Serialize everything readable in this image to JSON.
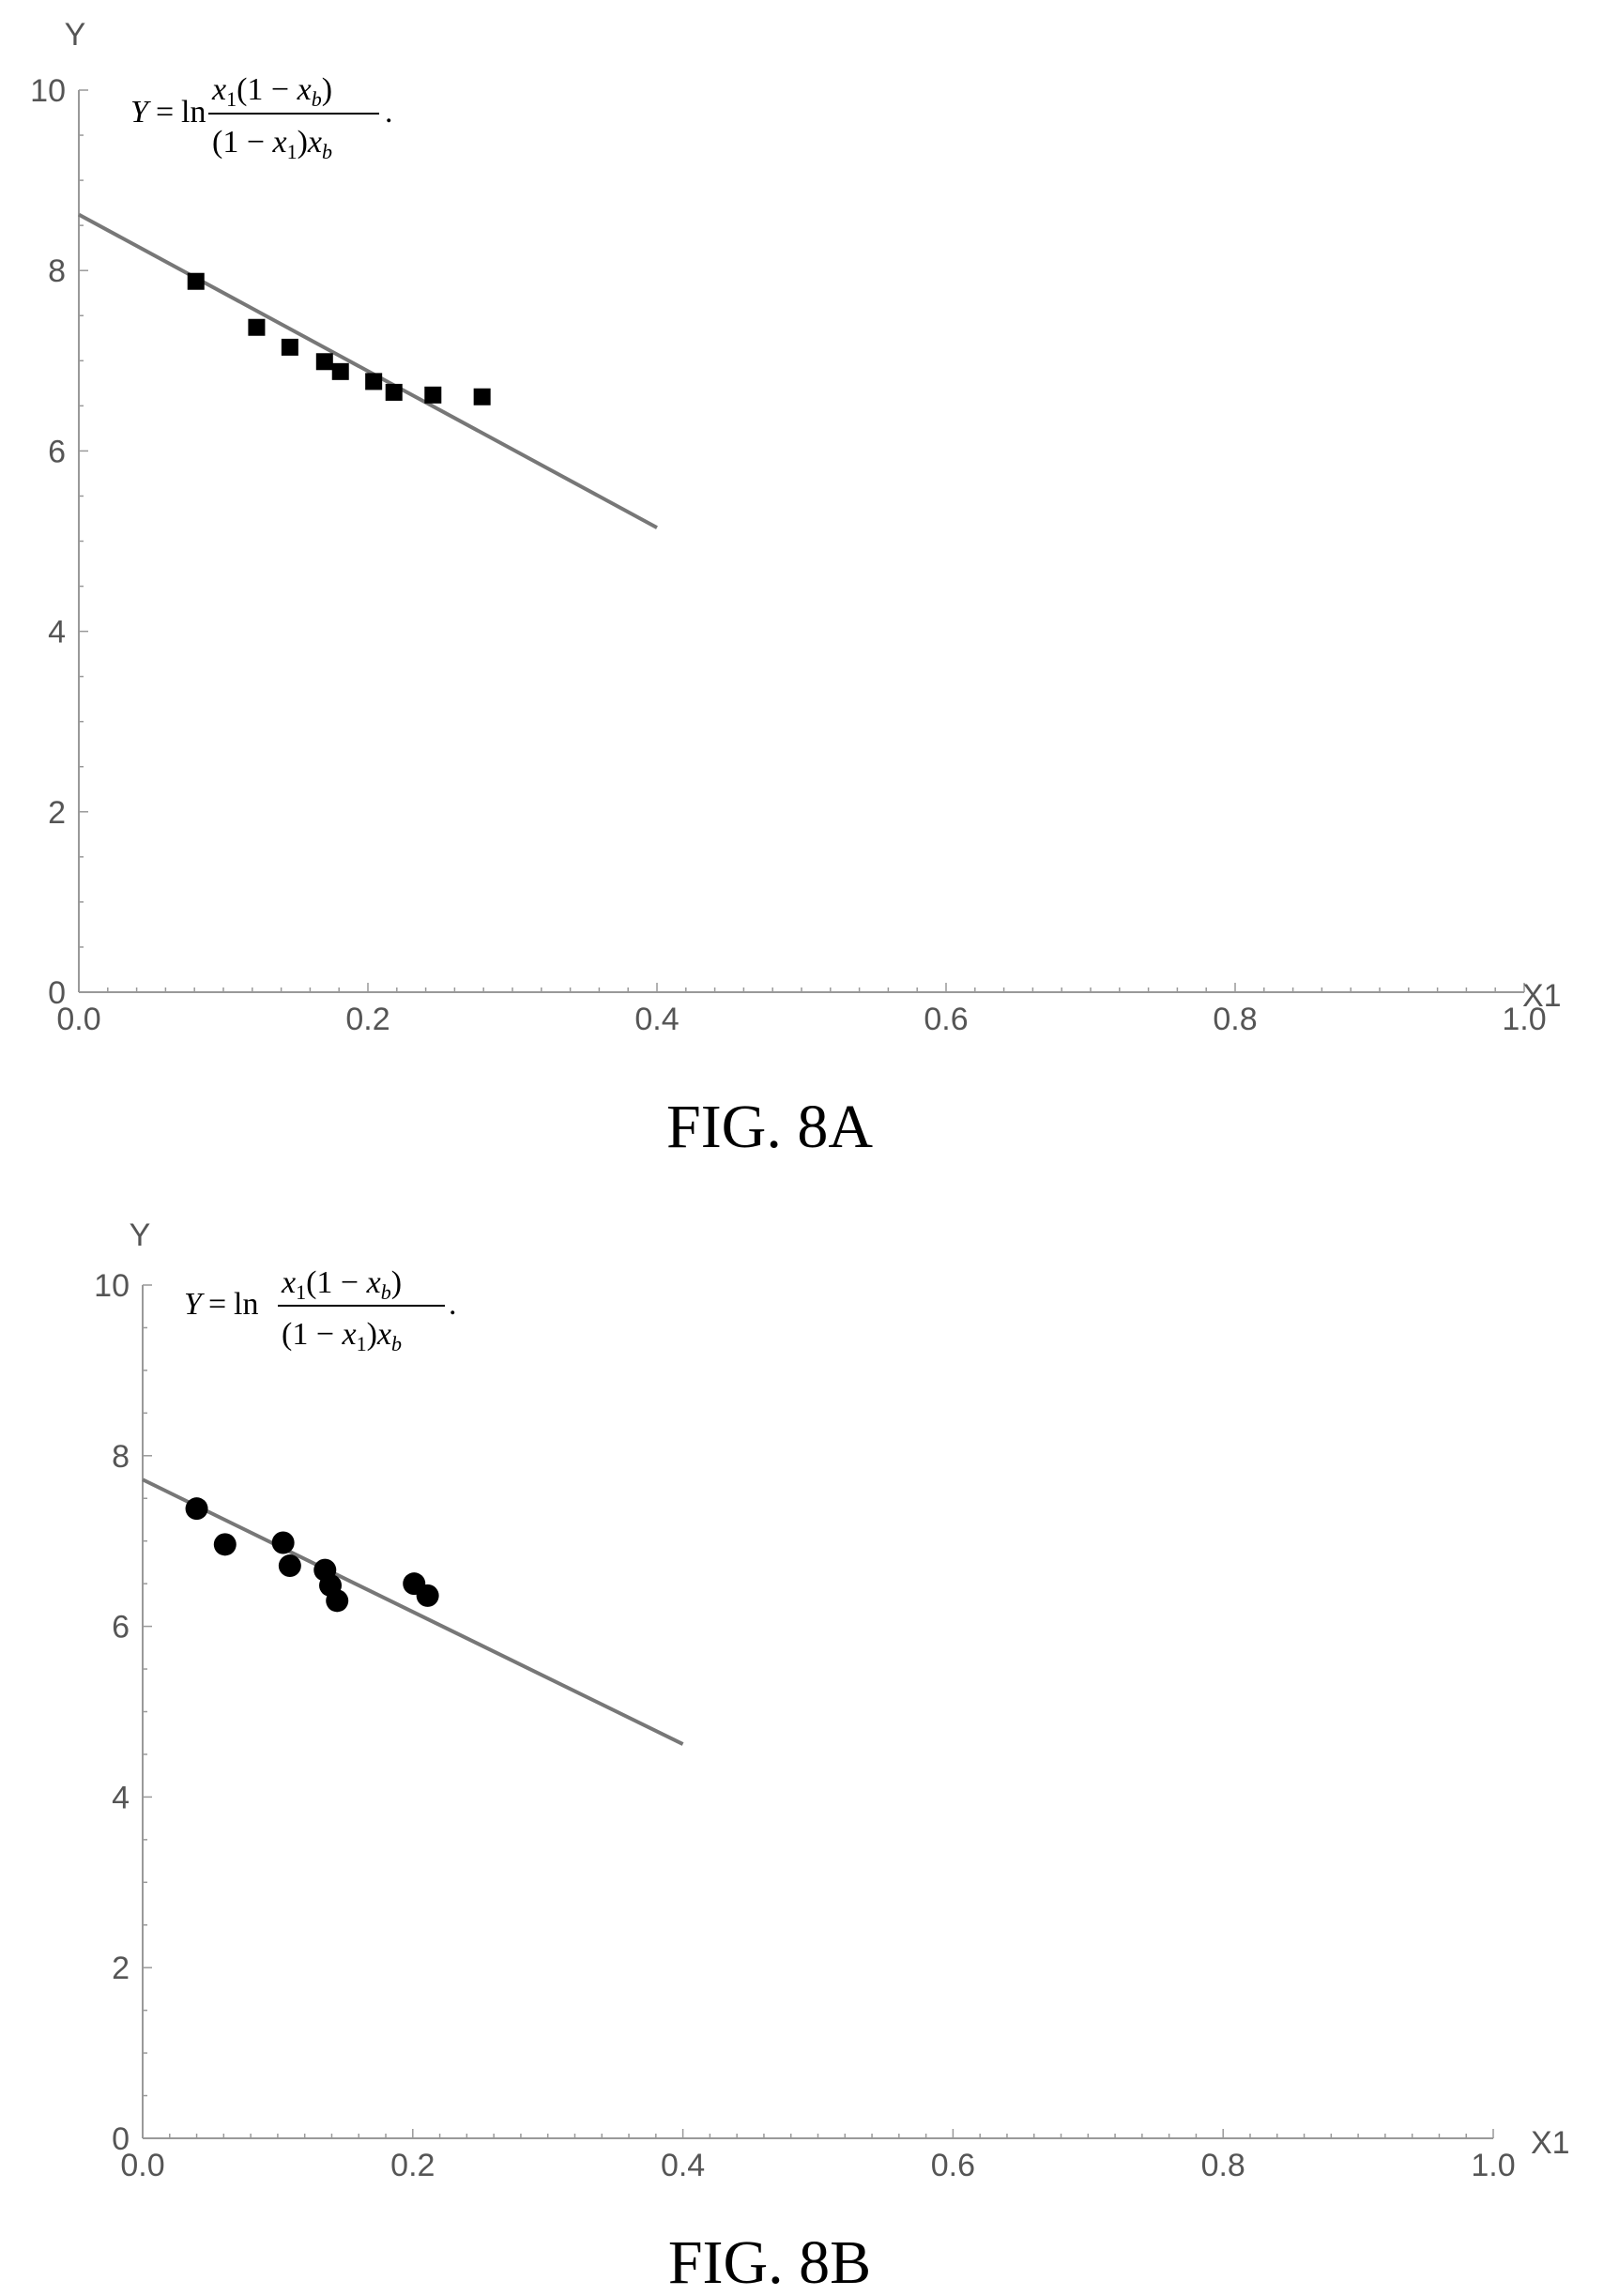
{
  "chart_data": [
    {
      "type": "scatter",
      "caption": "FIG. 8A",
      "xlabel": "X1",
      "ylabel": "Y",
      "xlim": [
        0,
        1
      ],
      "ylim": [
        0,
        10
      ],
      "x_ticks": [
        "0.0",
        "0.2",
        "0.4",
        "0.6",
        "0.8",
        "1.0"
      ],
      "y_ticks": [
        "0",
        "2",
        "4",
        "6",
        "8",
        "10"
      ],
      "annotation": {
        "lhs": "Y",
        "eq": "=",
        "ln": "ln",
        "num_x": "x",
        "num_x_sub": "1",
        "num_paren": "(1 − ",
        "num_xb": "x",
        "num_xb_sub": "b",
        "num_close": ")",
        "den_open": "(1 − ",
        "den_x": "x",
        "den_x_sub": "1",
        "den_close": ")",
        "den_xb": "x",
        "den_xb_sub": "b",
        "period": "."
      },
      "marker": "square",
      "points": [
        {
          "x": 0.081,
          "y": 7.88
        },
        {
          "x": 0.123,
          "y": 7.37
        },
        {
          "x": 0.146,
          "y": 7.15
        },
        {
          "x": 0.17,
          "y": 6.99
        },
        {
          "x": 0.181,
          "y": 6.88
        },
        {
          "x": 0.204,
          "y": 6.77
        },
        {
          "x": 0.218,
          "y": 6.65
        },
        {
          "x": 0.245,
          "y": 6.62
        },
        {
          "x": 0.279,
          "y": 6.6
        }
      ],
      "fit_line": {
        "x": [
          0.0,
          0.4
        ],
        "y": [
          8.62,
          5.15
        ]
      },
      "colors": {
        "points": "#000000",
        "line": "#777777",
        "axis": "#999999"
      }
    },
    {
      "type": "scatter",
      "caption": "FIG. 8B",
      "xlabel": "X1",
      "ylabel": "Y",
      "xlim": [
        0,
        1
      ],
      "ylim": [
        0,
        10
      ],
      "x_ticks": [
        "0.0",
        "0.2",
        "0.4",
        "0.6",
        "0.8",
        "1.0"
      ],
      "y_ticks": [
        "0",
        "2",
        "4",
        "6",
        "8",
        "10"
      ],
      "annotation": {
        "lhs": "Y",
        "eq": "=",
        "ln": "ln",
        "num_x": "x",
        "num_x_sub": "1",
        "num_paren": "(1 − ",
        "num_xb": "x",
        "num_xb_sub": "b",
        "num_close": ")",
        "den_open": "(1 − ",
        "den_x": "x",
        "den_x_sub": "1",
        "den_close": ")",
        "den_xb": "x",
        "den_xb_sub": "b",
        "period": "."
      },
      "marker": "circle",
      "points": [
        {
          "x": 0.04,
          "y": 7.38
        },
        {
          "x": 0.061,
          "y": 6.96
        },
        {
          "x": 0.104,
          "y": 6.98
        },
        {
          "x": 0.109,
          "y": 6.71
        },
        {
          "x": 0.135,
          "y": 6.66
        },
        {
          "x": 0.139,
          "y": 6.48
        },
        {
          "x": 0.144,
          "y": 6.3
        },
        {
          "x": 0.201,
          "y": 6.5
        },
        {
          "x": 0.211,
          "y": 6.36
        }
      ],
      "fit_line": {
        "x": [
          0.0,
          0.4
        ],
        "y": [
          7.72,
          4.62
        ]
      },
      "colors": {
        "points": "#000000",
        "line": "#777777",
        "axis": "#999999"
      }
    }
  ]
}
